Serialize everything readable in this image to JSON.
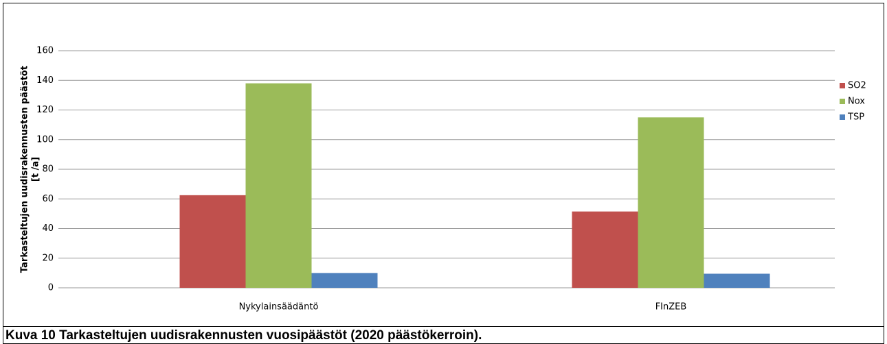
{
  "chart_data": {
    "type": "bar",
    "categories": [
      "Nykylainsäädäntö",
      "FInZEB"
    ],
    "series": [
      {
        "name": "SO2",
        "color": "#c0504d",
        "values": [
          62.5,
          51.5
        ]
      },
      {
        "name": "Nox",
        "color": "#9bbb59",
        "values": [
          138,
          115
        ]
      },
      {
        "name": "TSP",
        "color": "#4f81bd",
        "values": [
          10,
          9.5
        ]
      }
    ],
    "ylabel": [
      "Tarkasteltujen  uudisrakennusten  päästöt",
      "[t /a]"
    ],
    "ylim": [
      0,
      160
    ],
    "yticks": [
      0,
      20,
      40,
      60,
      80,
      100,
      120,
      140,
      160
    ],
    "grid": true,
    "legend": "right"
  },
  "caption": "Kuva 10 Tarkasteltujen uudisrakennusten vuosipäästöt (2020 päästökerroin)."
}
